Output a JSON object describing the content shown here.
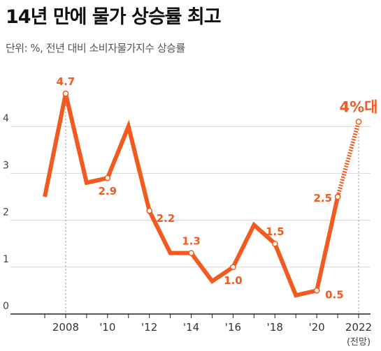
{
  "title": "14년 만에 물가 상승률 최고",
  "subtitle": "단위: %, 전년 대비 소비자물가지수 상승률",
  "colors": {
    "line": "#f25a1f",
    "grid": "#d6d6d6",
    "axis": "#222222"
  },
  "chart_data": {
    "type": "line",
    "x": [
      2007,
      2008,
      2009,
      2010,
      2011,
      2012,
      2013,
      2014,
      2015,
      2016,
      2017,
      2018,
      2019,
      2020,
      2021,
      2022
    ],
    "values": [
      2.5,
      4.7,
      2.8,
      2.9,
      4.0,
      2.2,
      1.3,
      1.3,
      0.7,
      1.0,
      1.9,
      1.5,
      0.4,
      0.5,
      2.5,
      4.1
    ],
    "forecast_from_index": 14,
    "ylim": [
      0,
      5
    ],
    "yticks": [
      {
        "value": 0,
        "label": "0"
      },
      {
        "value": 1,
        "label": "1"
      },
      {
        "value": 2,
        "label": "2"
      },
      {
        "value": 3,
        "label": "3"
      },
      {
        "value": 4,
        "label": "4"
      }
    ],
    "xticks": [
      {
        "year": 2008,
        "label": "2008"
      },
      {
        "year": 2010,
        "label": "'10"
      },
      {
        "year": 2012,
        "label": "'12"
      },
      {
        "year": 2014,
        "label": "'14"
      },
      {
        "year": 2016,
        "label": "'16"
      },
      {
        "year": 2018,
        "label": "'18"
      },
      {
        "year": 2020,
        "label": "'20"
      },
      {
        "year": 2022,
        "label": "2022"
      }
    ],
    "xnote": {
      "year": 2022,
      "label": "(전망)"
    },
    "data_labels": [
      {
        "year": 2008,
        "value": 4.7,
        "label": "4.7",
        "pos": "above"
      },
      {
        "year": 2010,
        "value": 2.9,
        "label": "2.9",
        "pos": "below"
      },
      {
        "year": 2012,
        "value": 2.2,
        "label": "2.2",
        "pos": "right"
      },
      {
        "year": 2014,
        "value": 1.3,
        "label": "1.3",
        "pos": "above"
      },
      {
        "year": 2016,
        "value": 1.0,
        "label": "1.0",
        "pos": "below"
      },
      {
        "year": 2018,
        "value": 1.5,
        "label": "1.5",
        "pos": "above"
      },
      {
        "year": 2020,
        "value": 0.5,
        "label": "0.5",
        "pos": "right"
      },
      {
        "year": 2021,
        "value": 2.5,
        "label": "2.5",
        "pos": "left"
      },
      {
        "year": 2022,
        "value": 4.1,
        "label": "4%대",
        "pos": "forecast"
      }
    ]
  }
}
